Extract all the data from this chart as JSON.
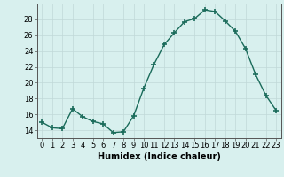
{
  "x": [
    0,
    1,
    2,
    3,
    4,
    5,
    6,
    7,
    8,
    9,
    10,
    11,
    12,
    13,
    14,
    15,
    16,
    17,
    18,
    19,
    20,
    21,
    22,
    23
  ],
  "y": [
    15.0,
    14.3,
    14.2,
    16.7,
    15.7,
    15.1,
    14.8,
    13.7,
    13.8,
    15.8,
    19.3,
    22.3,
    24.8,
    26.3,
    27.7,
    28.1,
    29.2,
    29.0,
    27.8,
    26.5,
    24.3,
    21.0,
    18.4,
    16.5
  ],
  "line_color": "#1a6b5a",
  "marker": "+",
  "marker_size": 4,
  "bg_color": "#d8f0ee",
  "grid_color": "#c0d8d8",
  "axis_color": "#555555",
  "xlabel": "Humidex (Indice chaleur)",
  "xlim": [
    -0.5,
    23.5
  ],
  "ylim": [
    13.0,
    30.0
  ],
  "yticks": [
    14,
    16,
    18,
    20,
    22,
    24,
    26,
    28
  ],
  "xticks": [
    0,
    1,
    2,
    3,
    4,
    5,
    6,
    7,
    8,
    9,
    10,
    11,
    12,
    13,
    14,
    15,
    16,
    17,
    18,
    19,
    20,
    21,
    22,
    23
  ],
  "label_fontsize": 7,
  "tick_fontsize": 6,
  "linewidth": 1.0,
  "marker_color": "#1a6b5a"
}
